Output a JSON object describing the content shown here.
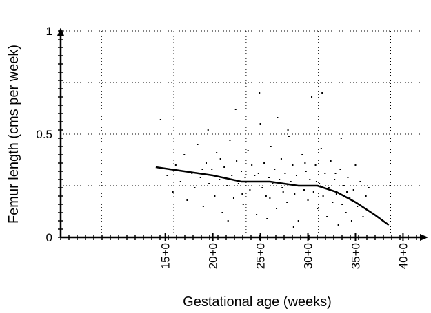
{
  "chart_data": {
    "type": "scatter",
    "title": "",
    "xlabel": "Gestational age (weeks)",
    "ylabel": "Femur length (cms per week)",
    "xlim": [
      4,
      42
    ],
    "ylim": [
      0,
      1
    ],
    "x_ticks": [
      {
        "value": 15,
        "label": "15+0"
      },
      {
        "value": 20,
        "label": "20+0"
      },
      {
        "value": 25,
        "label": "25+0"
      },
      {
        "value": 30,
        "label": "30+0"
      },
      {
        "value": 35,
        "label": "35+0"
      },
      {
        "value": 40,
        "label": "40+0"
      }
    ],
    "y_ticks": [
      {
        "value": 0,
        "label": "0"
      },
      {
        "value": 0.5,
        "label": "0.5"
      },
      {
        "value": 1,
        "label": "1"
      }
    ],
    "grid": true,
    "series": [
      {
        "kind": "line",
        "points": [
          [
            14,
            0.34
          ],
          [
            17,
            0.32
          ],
          [
            20,
            0.3
          ],
          [
            23,
            0.27
          ],
          [
            26,
            0.27
          ],
          [
            29,
            0.25
          ],
          [
            31,
            0.25
          ],
          [
            33,
            0.22
          ],
          [
            35,
            0.17
          ],
          [
            37,
            0.11
          ],
          [
            38.5,
            0.06
          ]
        ]
      },
      {
        "kind": "scatter",
        "points": [
          [
            14.5,
            0.57
          ],
          [
            15.2,
            0.3
          ],
          [
            15.8,
            0.22
          ],
          [
            16.1,
            0.35
          ],
          [
            16.6,
            0.27
          ],
          [
            17.0,
            0.4
          ],
          [
            17.3,
            0.18
          ],
          [
            17.8,
            0.31
          ],
          [
            18.1,
            0.24
          ],
          [
            18.4,
            0.45
          ],
          [
            18.7,
            0.29
          ],
          [
            19.0,
            0.15
          ],
          [
            19.3,
            0.36
          ],
          [
            19.6,
            0.26
          ],
          [
            19.9,
            0.33
          ],
          [
            20.2,
            0.2
          ],
          [
            20.4,
            0.41
          ],
          [
            20.7,
            0.28
          ],
          [
            21.0,
            0.12
          ],
          [
            21.2,
            0.34
          ],
          [
            21.5,
            0.25
          ],
          [
            21.8,
            0.47
          ],
          [
            22.0,
            0.3
          ],
          [
            22.2,
            0.19
          ],
          [
            22.5,
            0.37
          ],
          [
            22.7,
            0.26
          ],
          [
            23.0,
            0.32
          ],
          [
            23.2,
            0.16
          ],
          [
            23.4,
            0.29
          ],
          [
            23.7,
            0.42
          ],
          [
            23.9,
            0.23
          ],
          [
            24.1,
            0.35
          ],
          [
            24.3,
            0.27
          ],
          [
            24.6,
            0.11
          ],
          [
            24.8,
            0.31
          ],
          [
            25.0,
            0.55
          ],
          [
            25.2,
            0.24
          ],
          [
            25.4,
            0.36
          ],
          [
            25.6,
            0.2
          ],
          [
            25.9,
            0.29
          ],
          [
            26.1,
            0.44
          ],
          [
            26.3,
            0.26
          ],
          [
            26.5,
            0.33
          ],
          [
            26.7,
            0.14
          ],
          [
            27.0,
            0.28
          ],
          [
            27.2,
            0.38
          ],
          [
            27.4,
            0.22
          ],
          [
            27.6,
            0.31
          ],
          [
            27.8,
            0.17
          ],
          [
            28.0,
            0.49
          ],
          [
            28.2,
            0.27
          ],
          [
            28.4,
            0.35
          ],
          [
            28.6,
            0.21
          ],
          [
            28.8,
            0.3
          ],
          [
            29.0,
            0.08
          ],
          [
            29.2,
            0.25
          ],
          [
            29.4,
            0.4
          ],
          [
            29.6,
            0.23
          ],
          [
            29.8,
            0.32
          ],
          [
            30.0,
            0.18
          ],
          [
            30.2,
            0.28
          ],
          [
            30.4,
            0.68
          ],
          [
            30.6,
            0.22
          ],
          [
            30.8,
            0.35
          ],
          [
            31.0,
            0.14
          ],
          [
            31.2,
            0.26
          ],
          [
            31.4,
            0.43
          ],
          [
            31.6,
            0.2
          ],
          [
            31.8,
            0.31
          ],
          [
            32.0,
            0.1
          ],
          [
            32.2,
            0.24
          ],
          [
            32.4,
            0.37
          ],
          [
            32.6,
            0.17
          ],
          [
            32.8,
            0.28
          ],
          [
            33.0,
            0.21
          ],
          [
            33.2,
            0.06
          ],
          [
            33.4,
            0.33
          ],
          [
            33.6,
            0.16
          ],
          [
            33.8,
            0.25
          ],
          [
            34.0,
            0.12
          ],
          [
            34.2,
            0.29
          ],
          [
            34.4,
            0.19
          ],
          [
            34.6,
            0.08
          ],
          [
            34.8,
            0.23
          ],
          [
            35.0,
            0.35
          ],
          [
            35.2,
            0.15
          ],
          [
            35.5,
            0.27
          ],
          [
            35.8,
            0.1
          ],
          [
            36.1,
            0.2
          ],
          [
            36.4,
            0.24
          ],
          [
            22.4,
            0.62
          ],
          [
            26.8,
            0.58
          ],
          [
            24.9,
            0.7
          ],
          [
            31.5,
            0.7
          ],
          [
            19.5,
            0.52
          ],
          [
            27.9,
            0.52
          ],
          [
            33.5,
            0.48
          ],
          [
            21.6,
            0.08
          ],
          [
            28.5,
            0.05
          ],
          [
            25.7,
            0.09
          ],
          [
            20.8,
            0.38
          ],
          [
            23.1,
            0.21
          ],
          [
            26.0,
            0.19
          ],
          [
            29.7,
            0.36
          ],
          [
            32.9,
            0.31
          ],
          [
            18.9,
            0.33
          ],
          [
            24.4,
            0.3
          ],
          [
            27.3,
            0.24
          ],
          [
            30.9,
            0.27
          ],
          [
            34.1,
            0.22
          ]
        ]
      }
    ]
  }
}
